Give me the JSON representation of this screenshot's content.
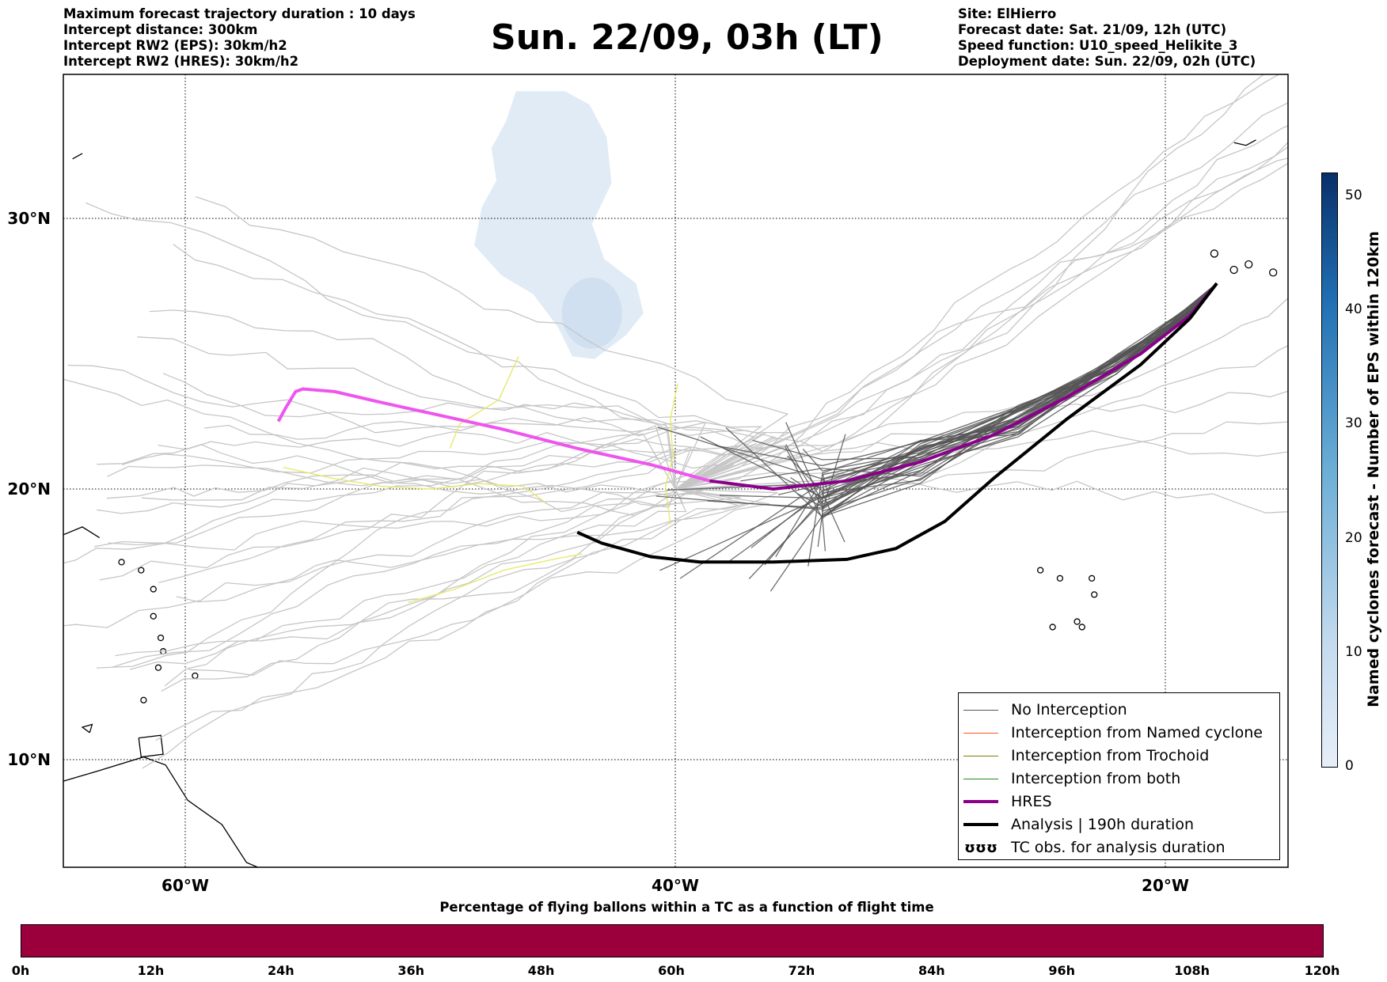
{
  "header": {
    "left_lines": [
      "Maximum forecast trajectory duration : 10 days",
      "Intercept distance: 300km",
      "Intercept RW2 (EPS):  30km/h2",
      "Intercept RW2 (HRES): 30km/h2"
    ],
    "title": "Sun. 22/09, 03h (LT)",
    "right_lines": [
      "Site: ElHierro",
      "Forecast date: Sat. 21/09, 12h (UTC)",
      "Speed function: U10_speed_Helikite_3",
      "Deployment date: Sun. 22/09, 02h (UTC)"
    ]
  },
  "colors": {
    "no_interception": "#555555",
    "named_cyclone": "#ff5522",
    "trochoid": "#808000",
    "both": "#228b22",
    "hres": "#8b008b",
    "hres_early": "#ee55ee",
    "analysis": "#000000",
    "bar_fill": "#9b003c",
    "cyclone_shade": "#dbe7f4"
  },
  "chart_data": {
    "type": "line",
    "map_extent": {
      "lon": [
        -65,
        15
      ],
      "lat": [
        5,
        34.7
      ]
    },
    "lat_ticks": [
      "30°N",
      "20°N",
      "10°N"
    ],
    "lon_ticks": [
      "60°W",
      "40°W",
      "20°W"
    ],
    "lat_tick_values": [
      30,
      20,
      10
    ],
    "lon_tick_values": [
      -60,
      -40,
      -20
    ],
    "grid": true,
    "legend_position": "bottom-right",
    "legend": [
      {
        "key": "no_interception",
        "label": "No Interception"
      },
      {
        "key": "named_cyclone",
        "label": "Interception from Named cyclone"
      },
      {
        "key": "trochoid",
        "label": "Interception from Trochoid"
      },
      {
        "key": "both",
        "label": "Interception from both"
      },
      {
        "key": "hres",
        "label": "HRES"
      },
      {
        "key": "analysis",
        "label": "Analysis | 190h duration"
      },
      {
        "key": "tc_obs",
        "label": "TC obs. for analysis duration",
        "symbol": "ʊʊʊ"
      }
    ],
    "series": [
      {
        "name": "HRES",
        "points": [
          [
            -17.9,
            27.6
          ],
          [
            -19.0,
            26.4
          ],
          [
            -21.0,
            25.0
          ],
          [
            -24.0,
            23.4
          ],
          [
            -27.0,
            22.0
          ],
          [
            -30.0,
            21.0
          ],
          [
            -33.0,
            20.3
          ],
          [
            -36.0,
            20.0
          ],
          [
            -38.6,
            20.3
          ],
          [
            -41.0,
            20.9
          ],
          [
            -44.0,
            21.5
          ],
          [
            -47.0,
            22.2
          ],
          [
            -50.0,
            22.8
          ],
          [
            -52.0,
            23.2
          ],
          [
            -53.9,
            23.6
          ],
          [
            -55.2,
            23.7
          ],
          [
            -55.5,
            23.6
          ],
          [
            -55.9,
            23.0
          ],
          [
            -56.2,
            22.5
          ]
        ]
      },
      {
        "name": "Analysis | 190h duration",
        "points": [
          [
            -17.9,
            27.6
          ],
          [
            -19.0,
            26.3
          ],
          [
            -21.0,
            24.6
          ],
          [
            -24.0,
            22.6
          ],
          [
            -27.0,
            20.4
          ],
          [
            -29.0,
            18.8
          ],
          [
            -31.0,
            17.8
          ],
          [
            -33.0,
            17.4
          ],
          [
            -36.0,
            17.3
          ],
          [
            -39.0,
            17.3
          ],
          [
            -41.0,
            17.5
          ],
          [
            -43.0,
            18.0
          ],
          [
            -44.0,
            18.4
          ]
        ]
      }
    ],
    "colorbar_vertical": {
      "label": "Named cyclones forecast - Number of EPS within 120km",
      "range": [
        0,
        52
      ],
      "ticks": [
        0,
        10,
        20,
        30,
        40,
        50
      ]
    },
    "colorbar_horizontal": {
      "title": "Percentage of flying ballons within a TC as a function of flight time",
      "ticks": [
        "0h",
        "12h",
        "24h",
        "36h",
        "48h",
        "60h",
        "72h",
        "84h",
        "96h",
        "108h",
        "120h"
      ]
    }
  }
}
